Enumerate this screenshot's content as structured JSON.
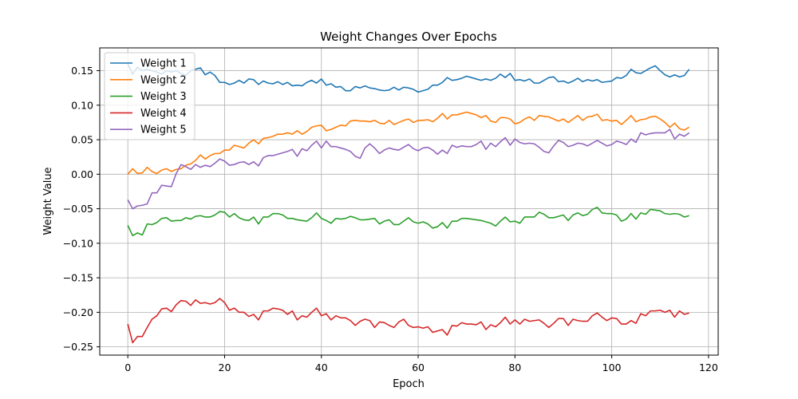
{
  "chart_data": {
    "type": "line",
    "title": "Weight Changes Over Epochs",
    "xlabel": "Epoch",
    "ylabel": "Weight Value",
    "xlim": [
      -5.8,
      122
    ],
    "ylim": [
      -0.262,
      0.183
    ],
    "xticks": [
      0,
      20,
      40,
      60,
      80,
      100,
      120
    ],
    "yticks": [
      -0.25,
      -0.2,
      -0.15,
      -0.1,
      -0.05,
      0.0,
      0.05,
      0.1,
      0.15
    ],
    "xtick_labels": [
      "0",
      "20",
      "40",
      "60",
      "80",
      "100",
      "120"
    ],
    "ytick_labels": [
      "−0.25",
      "−0.20",
      "−0.15",
      "−0.10",
      "−0.05",
      "0.00",
      "0.05",
      "0.10",
      "0.15"
    ],
    "grid": true,
    "legend_position": "top-left",
    "x": [
      0,
      1,
      2,
      3,
      4,
      5,
      6,
      7,
      8,
      9,
      10,
      11,
      12,
      13,
      14,
      15,
      16,
      17,
      18,
      19,
      20,
      21,
      22,
      23,
      24,
      25,
      26,
      27,
      28,
      29,
      30,
      31,
      32,
      33,
      34,
      35,
      36,
      37,
      38,
      39,
      40,
      41,
      42,
      43,
      44,
      45,
      46,
      47,
      48,
      49,
      50,
      51,
      52,
      53,
      54,
      55,
      56,
      57,
      58,
      59,
      60,
      61,
      62,
      63,
      64,
      65,
      66,
      67,
      68,
      69,
      70,
      71,
      72,
      73,
      74,
      75,
      76,
      77,
      78,
      79,
      80,
      81,
      82,
      83,
      84,
      85,
      86,
      87,
      88,
      89,
      90,
      91,
      92,
      93,
      94,
      95,
      96,
      97,
      98,
      99,
      100,
      101,
      102,
      103,
      104,
      105,
      106,
      107,
      108,
      109,
      110,
      111,
      112,
      113,
      114,
      115,
      116
    ],
    "series": [
      {
        "name": "Weight 1",
        "color": "#1f77b4",
        "values": [
          0.16,
          0.145,
          0.155,
          0.15,
          0.152,
          0.15,
          0.148,
          0.145,
          0.15,
          0.148,
          0.15,
          0.146,
          0.143,
          0.15,
          0.152,
          0.154,
          0.144,
          0.148,
          0.143,
          0.133,
          0.133,
          0.13,
          0.132,
          0.136,
          0.132,
          0.138,
          0.137,
          0.13,
          0.135,
          0.132,
          0.131,
          0.134,
          0.13,
          0.133,
          0.128,
          0.129,
          0.128,
          0.133,
          0.136,
          0.132,
          0.138,
          0.129,
          0.131,
          0.126,
          0.127,
          0.121,
          0.121,
          0.127,
          0.125,
          0.128,
          0.125,
          0.124,
          0.122,
          0.121,
          0.122,
          0.126,
          0.122,
          0.126,
          0.125,
          0.123,
          0.119,
          0.121,
          0.123,
          0.129,
          0.129,
          0.133,
          0.14,
          0.136,
          0.137,
          0.139,
          0.142,
          0.14,
          0.138,
          0.136,
          0.138,
          0.136,
          0.139,
          0.145,
          0.14,
          0.146,
          0.136,
          0.137,
          0.135,
          0.138,
          0.132,
          0.132,
          0.136,
          0.14,
          0.141,
          0.134,
          0.135,
          0.132,
          0.135,
          0.139,
          0.134,
          0.137,
          0.135,
          0.137,
          0.133,
          0.134,
          0.135,
          0.14,
          0.139,
          0.143,
          0.152,
          0.147,
          0.146,
          0.15,
          0.154,
          0.157,
          0.15,
          0.144,
          0.141,
          0.144,
          0.141,
          0.143,
          0.152
        ]
      },
      {
        "name": "Weight 2",
        "color": "#ff7f0e",
        "values": [
          0.0,
          0.008,
          0.001,
          0.002,
          0.01,
          0.004,
          0.001,
          0.006,
          0.008,
          0.004,
          0.007,
          0.008,
          0.013,
          0.015,
          0.02,
          0.028,
          0.022,
          0.027,
          0.03,
          0.03,
          0.035,
          0.035,
          0.042,
          0.04,
          0.038,
          0.045,
          0.05,
          0.044,
          0.052,
          0.053,
          0.055,
          0.058,
          0.058,
          0.06,
          0.058,
          0.063,
          0.058,
          0.062,
          0.068,
          0.07,
          0.071,
          0.063,
          0.065,
          0.068,
          0.071,
          0.07,
          0.077,
          0.078,
          0.077,
          0.077,
          0.076,
          0.078,
          0.074,
          0.073,
          0.078,
          0.072,
          0.075,
          0.078,
          0.08,
          0.075,
          0.078,
          0.078,
          0.079,
          0.076,
          0.081,
          0.088,
          0.08,
          0.086,
          0.086,
          0.088,
          0.09,
          0.088,
          0.086,
          0.082,
          0.085,
          0.077,
          0.075,
          0.082,
          0.082,
          0.08,
          0.073,
          0.075,
          0.08,
          0.083,
          0.078,
          0.085,
          0.084,
          0.083,
          0.08,
          0.077,
          0.08,
          0.075,
          0.08,
          0.085,
          0.078,
          0.083,
          0.084,
          0.087,
          0.078,
          0.079,
          0.077,
          0.078,
          0.072,
          0.078,
          0.085,
          0.076,
          0.079,
          0.08,
          0.083,
          0.084,
          0.08,
          0.075,
          0.068,
          0.074,
          0.066,
          0.064,
          0.068
        ]
      },
      {
        "name": "Weight 3",
        "color": "#2ca02c",
        "values": [
          -0.074,
          -0.089,
          -0.085,
          -0.088,
          -0.072,
          -0.073,
          -0.07,
          -0.064,
          -0.063,
          -0.068,
          -0.067,
          -0.067,
          -0.063,
          -0.065,
          -0.061,
          -0.06,
          -0.062,
          -0.062,
          -0.059,
          -0.054,
          -0.055,
          -0.062,
          -0.057,
          -0.063,
          -0.066,
          -0.067,
          -0.062,
          -0.072,
          -0.062,
          -0.062,
          -0.057,
          -0.057,
          -0.059,
          -0.064,
          -0.064,
          -0.066,
          -0.067,
          -0.068,
          -0.063,
          -0.056,
          -0.064,
          -0.067,
          -0.071,
          -0.064,
          -0.065,
          -0.064,
          -0.061,
          -0.063,
          -0.066,
          -0.066,
          -0.065,
          -0.064,
          -0.072,
          -0.068,
          -0.066,
          -0.073,
          -0.073,
          -0.068,
          -0.063,
          -0.069,
          -0.071,
          -0.069,
          -0.072,
          -0.078,
          -0.076,
          -0.07,
          -0.078,
          -0.068,
          -0.068,
          -0.064,
          -0.064,
          -0.065,
          -0.066,
          -0.067,
          -0.069,
          -0.071,
          -0.075,
          -0.068,
          -0.062,
          -0.069,
          -0.068,
          -0.071,
          -0.062,
          -0.062,
          -0.062,
          -0.055,
          -0.058,
          -0.063,
          -0.063,
          -0.061,
          -0.059,
          -0.067,
          -0.059,
          -0.056,
          -0.06,
          -0.058,
          -0.051,
          -0.048,
          -0.056,
          -0.057,
          -0.057,
          -0.059,
          -0.068,
          -0.065,
          -0.057,
          -0.065,
          -0.056,
          -0.058,
          -0.051,
          -0.052,
          -0.053,
          -0.057,
          -0.058,
          -0.057,
          -0.058,
          -0.062,
          -0.06
        ]
      },
      {
        "name": "Weight 4",
        "color": "#d62728",
        "values": [
          -0.217,
          -0.244,
          -0.235,
          -0.235,
          -0.222,
          -0.21,
          -0.205,
          -0.195,
          -0.194,
          -0.199,
          -0.189,
          -0.183,
          -0.184,
          -0.19,
          -0.182,
          -0.187,
          -0.186,
          -0.188,
          -0.186,
          -0.18,
          -0.186,
          -0.197,
          -0.194,
          -0.2,
          -0.2,
          -0.206,
          -0.203,
          -0.211,
          -0.198,
          -0.198,
          -0.194,
          -0.195,
          -0.197,
          -0.203,
          -0.198,
          -0.211,
          -0.205,
          -0.207,
          -0.2,
          -0.194,
          -0.205,
          -0.202,
          -0.211,
          -0.205,
          -0.208,
          -0.208,
          -0.212,
          -0.219,
          -0.213,
          -0.21,
          -0.212,
          -0.222,
          -0.214,
          -0.215,
          -0.219,
          -0.222,
          -0.214,
          -0.21,
          -0.219,
          -0.222,
          -0.221,
          -0.223,
          -0.221,
          -0.229,
          -0.227,
          -0.225,
          -0.233,
          -0.219,
          -0.22,
          -0.215,
          -0.217,
          -0.217,
          -0.218,
          -0.214,
          -0.225,
          -0.218,
          -0.221,
          -0.215,
          -0.207,
          -0.217,
          -0.211,
          -0.217,
          -0.21,
          -0.213,
          -0.212,
          -0.211,
          -0.216,
          -0.222,
          -0.216,
          -0.209,
          -0.209,
          -0.219,
          -0.21,
          -0.212,
          -0.213,
          -0.213,
          -0.205,
          -0.201,
          -0.207,
          -0.212,
          -0.208,
          -0.209,
          -0.217,
          -0.217,
          -0.212,
          -0.216,
          -0.202,
          -0.205,
          -0.198,
          -0.198,
          -0.197,
          -0.2,
          -0.197,
          -0.207,
          -0.198,
          -0.203,
          -0.201
        ]
      },
      {
        "name": "Weight 5",
        "color": "#9467bd",
        "values": [
          -0.037,
          -0.05,
          -0.046,
          -0.045,
          -0.043,
          -0.027,
          -0.027,
          -0.016,
          -0.017,
          -0.018,
          0.001,
          0.014,
          0.011,
          0.007,
          0.014,
          0.01,
          0.013,
          0.011,
          0.016,
          0.022,
          0.019,
          0.013,
          0.014,
          0.017,
          0.018,
          0.014,
          0.018,
          0.012,
          0.024,
          0.027,
          0.027,
          0.029,
          0.031,
          0.033,
          0.036,
          0.026,
          0.037,
          0.034,
          0.042,
          0.048,
          0.038,
          0.048,
          0.04,
          0.04,
          0.038,
          0.036,
          0.033,
          0.026,
          0.023,
          0.038,
          0.044,
          0.038,
          0.03,
          0.035,
          0.038,
          0.036,
          0.035,
          0.039,
          0.043,
          0.037,
          0.034,
          0.038,
          0.039,
          0.035,
          0.029,
          0.035,
          0.03,
          0.042,
          0.039,
          0.041,
          0.04,
          0.04,
          0.043,
          0.048,
          0.036,
          0.045,
          0.04,
          0.047,
          0.053,
          0.042,
          0.051,
          0.046,
          0.044,
          0.045,
          0.044,
          0.039,
          0.033,
          0.031,
          0.041,
          0.049,
          0.046,
          0.04,
          0.042,
          0.045,
          0.044,
          0.041,
          0.045,
          0.049,
          0.045,
          0.041,
          0.043,
          0.048,
          0.046,
          0.043,
          0.051,
          0.046,
          0.06,
          0.057,
          0.059,
          0.06,
          0.06,
          0.06,
          0.065,
          0.051,
          0.058,
          0.055,
          0.06
        ]
      }
    ]
  }
}
